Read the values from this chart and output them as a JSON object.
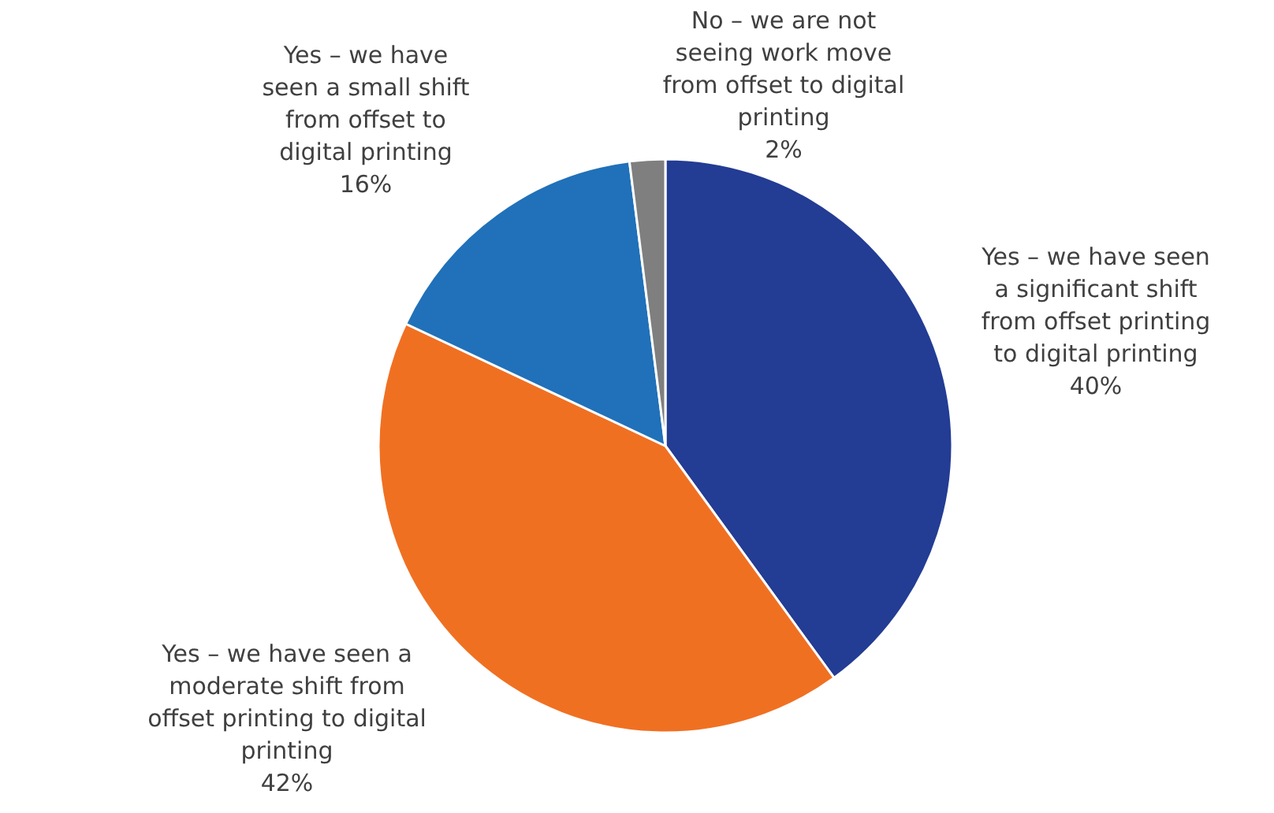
{
  "chart_data": {
    "type": "pie",
    "categories": [
      "Yes – we have seen a significant shift from offset printing to digital printing",
      "Yes – we have seen a moderate shift from offset printing to digital printing",
      "Yes – we have seen a small shift from offset to digital printing",
      "No – we are not seeing work move from offset to digital printing"
    ],
    "values": [
      40,
      42,
      16,
      2
    ],
    "colors": [
      "#233c94",
      "#f07022",
      "#2071b9",
      "#7f7f7f"
    ],
    "value_labels": [
      "40%",
      "42%",
      "16%",
      "2%"
    ]
  }
}
